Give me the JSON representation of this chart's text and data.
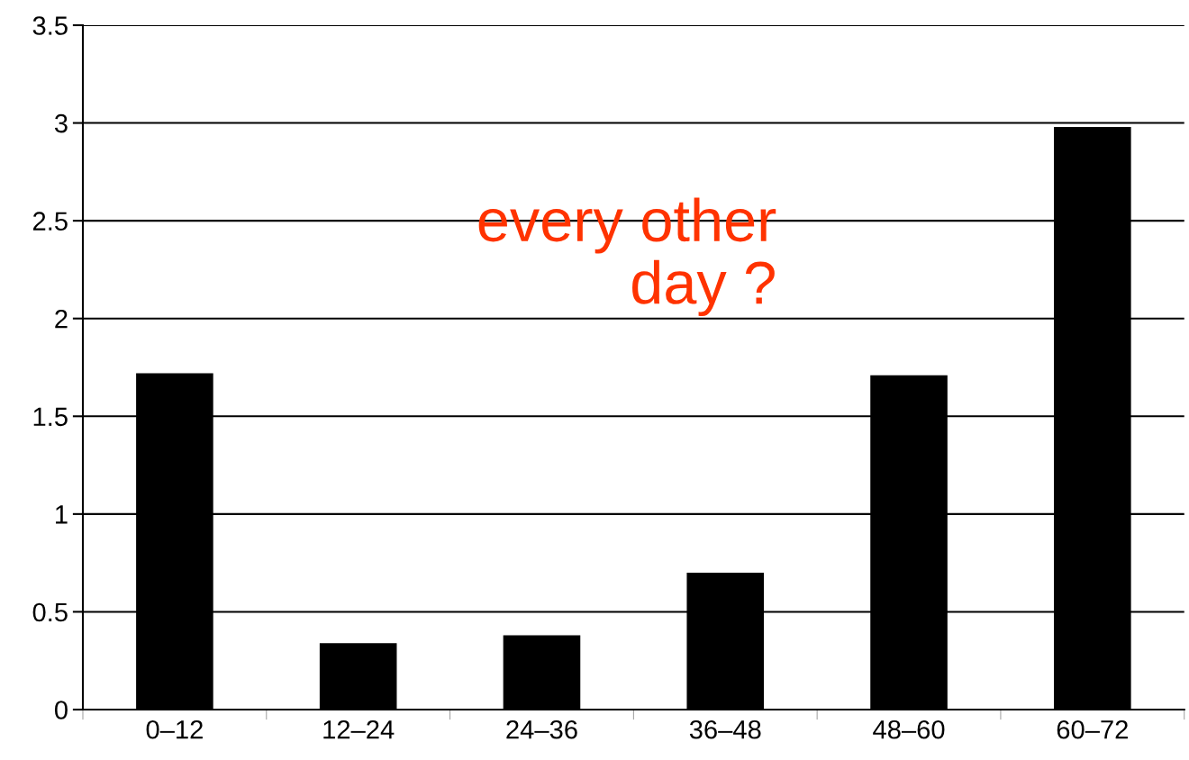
{
  "chart_data": {
    "type": "bar",
    "categories": [
      "0–12",
      "12–24",
      "24–36",
      "36–48",
      "48–60",
      "60–72"
    ],
    "values": [
      1.72,
      0.34,
      0.38,
      0.7,
      1.71,
      2.98
    ],
    "color": "#000000",
    "ylim": [
      0,
      3.5
    ],
    "yticks": [
      0,
      0.5,
      1,
      1.5,
      2,
      2.5,
      3,
      3.5
    ],
    "grid": "y",
    "annotations": [
      "every other\nday ?"
    ]
  }
}
